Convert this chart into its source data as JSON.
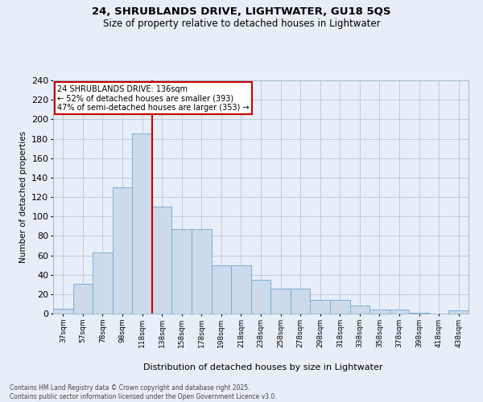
{
  "title1": "24, SHRUBLANDS DRIVE, LIGHTWATER, GU18 5QS",
  "title2": "Size of property relative to detached houses in Lightwater",
  "xlabel": "Distribution of detached houses by size in Lightwater",
  "ylabel": "Number of detached properties",
  "categories": [
    "37sqm",
    "57sqm",
    "78sqm",
    "98sqm",
    "118sqm",
    "138sqm",
    "158sqm",
    "178sqm",
    "198sqm",
    "218sqm",
    "238sqm",
    "258sqm",
    "278sqm",
    "298sqm",
    "318sqm",
    "338sqm",
    "358sqm",
    "378sqm",
    "398sqm",
    "418sqm",
    "438sqm"
  ],
  "values": [
    5,
    31,
    63,
    130,
    185,
    110,
    87,
    87,
    50,
    50,
    35,
    26,
    26,
    14,
    14,
    8,
    4,
    4,
    1,
    0,
    3
  ],
  "bar_color": "#ccdaeb",
  "bar_edge_color": "#7aaed6",
  "vline_x": 4.5,
  "vline_color": "#cc0000",
  "annotation_text": "24 SHRUBLANDS DRIVE: 136sqm\n← 52% of detached houses are smaller (393)\n47% of semi-detached houses are larger (353) →",
  "annotation_box_color": "#ffffff",
  "annotation_box_edge": "#cc0000",
  "footer": "Contains HM Land Registry data © Crown copyright and database right 2025.\nContains public sector information licensed under the Open Government Licence v3.0.",
  "ylim": [
    0,
    240
  ],
  "yticks": [
    0,
    20,
    40,
    60,
    80,
    100,
    120,
    140,
    160,
    180,
    200,
    220,
    240
  ],
  "grid_color": "#c0ccd8",
  "bg_color": "#e8eef8",
  "plot_bg_color": "#e8eef8"
}
